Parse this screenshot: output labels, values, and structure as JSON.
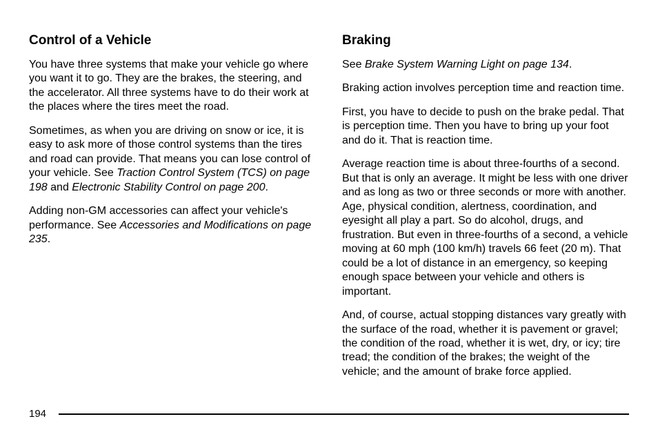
{
  "typography": {
    "heading_fontsize": 19,
    "body_fontsize": 16,
    "heading_weight": "bold",
    "text_color": "#000000",
    "background_color": "#ffffff"
  },
  "left": {
    "heading": "Control of a Vehicle",
    "p1": "You have three systems that make your vehicle go where you want it to go. They are the brakes, the steering, and the accelerator. All three systems have to do their work at the places where the tires meet the road.",
    "p2a": "Sometimes, as when you are driving on snow or ice, it is easy to ask more of those control systems than the tires and road can provide. That means you can lose control of your vehicle. See ",
    "p2_ref1": "Traction Control System (TCS) on page 198",
    "p2b": " and ",
    "p2_ref2": "Electronic Stability Control on page 200",
    "p2c": ".",
    "p3a": "Adding non-GM accessories can affect your vehicle's performance. See ",
    "p3_ref": "Accessories and Modifications on page 235",
    "p3b": "."
  },
  "right": {
    "heading": "Braking",
    "p1a": "See ",
    "p1_ref": "Brake System Warning Light on page 134",
    "p1b": ".",
    "p2": "Braking action involves perception time and reaction time.",
    "p3": "First, you have to decide to push on the brake pedal. That is perception time. Then you have to bring up your foot and do it. That is reaction time.",
    "p4": "Average reaction time is about three-fourths of a second. But that is only an average. It might be less with one driver and as long as two or three seconds or more with another. Age, physical condition, alertness, coordination, and eyesight all play a part. So do alcohol, drugs, and frustration. But even in three-fourths of a second, a vehicle moving at 60 mph (100 km/h) travels 66 feet (20 m). That could be a lot of distance in an emergency, so keeping enough space between your vehicle and others is important.",
    "p5": "And, of course, actual stopping distances vary greatly with the surface of the road, whether it is pavement or gravel; the condition of the road, whether it is wet, dry, or icy; tire tread; the condition of the brakes; the weight of the vehicle; and the amount of brake force applied."
  },
  "page_number": "194"
}
